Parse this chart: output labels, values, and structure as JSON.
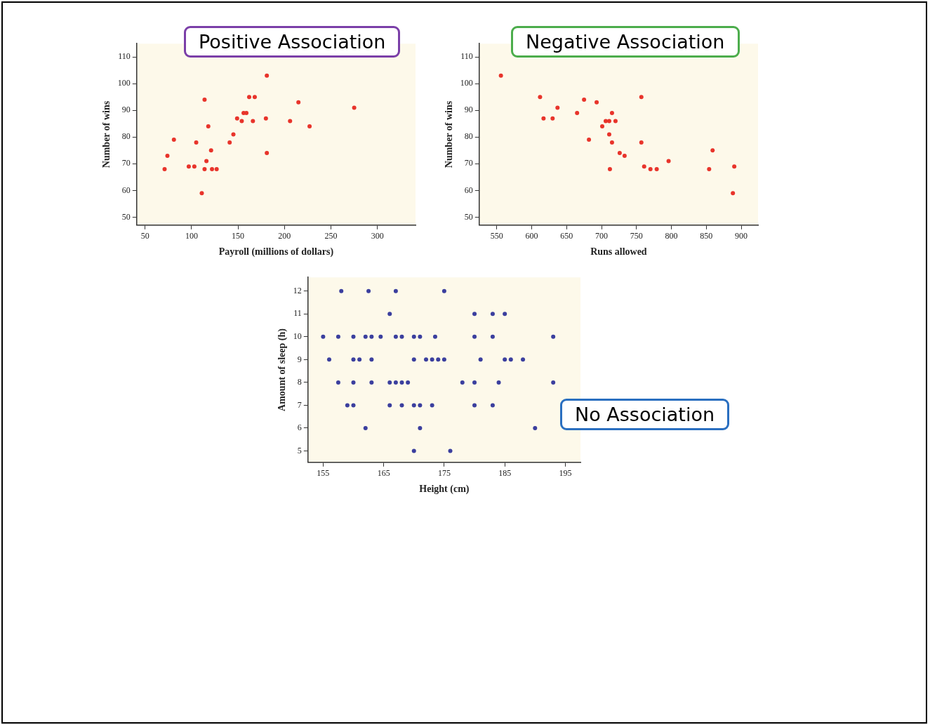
{
  "chart_data": [
    {
      "type": "scatter",
      "title": "Positive Association",
      "xlabel": "Payroll (millions of dollars)",
      "ylabel": "Number of wins",
      "xlim": [
        41,
        341
      ],
      "xticks": [
        50,
        100,
        150,
        200,
        250,
        300
      ],
      "ylim": [
        47,
        115
      ],
      "yticks": [
        50,
        60,
        70,
        80,
        90,
        100,
        110
      ],
      "grid": false,
      "legend": false,
      "marker": "circle",
      "series": [
        {
          "color": "#e8342b",
          "x": [
            71,
            74,
            81,
            97,
            103,
            105,
            114,
            111,
            114,
            116,
            118,
            121,
            122,
            127,
            141,
            145,
            149,
            154,
            156,
            159,
            162,
            166,
            168,
            180,
            181,
            181,
            206,
            215,
            227,
            275
          ],
          "values": [
            68,
            73,
            79,
            69,
            69,
            78,
            94,
            59,
            68,
            71,
            84,
            75,
            68,
            68,
            78,
            81,
            87,
            86,
            89,
            89,
            95,
            86,
            95,
            87,
            74,
            103,
            86,
            93,
            84,
            91
          ]
        }
      ]
    },
    {
      "type": "scatter",
      "title": "Negative Association",
      "xlabel": "Runs allowed",
      "ylabel": "Number of wins",
      "xlim": [
        525,
        924
      ],
      "xticks": [
        550,
        600,
        650,
        700,
        750,
        800,
        850,
        900
      ],
      "ylim": [
        47,
        115
      ],
      "yticks": [
        50,
        60,
        70,
        80,
        90,
        100,
        110
      ],
      "grid": false,
      "legend": false,
      "marker": "circle",
      "series": [
        {
          "color": "#e8342b",
          "x": [
            556,
            612,
            617,
            630,
            637,
            665,
            675,
            682,
            693,
            701,
            706,
            711,
            711,
            712,
            715,
            715,
            720,
            726,
            733,
            757,
            757,
            761,
            770,
            779,
            796,
            854,
            859,
            888,
            890
          ],
          "values": [
            103,
            95,
            87,
            87,
            91,
            89,
            94,
            79,
            93,
            84,
            86,
            86,
            81,
            68,
            89,
            78,
            86,
            74,
            73,
            95,
            78,
            69,
            68,
            68,
            71,
            68,
            75,
            59,
            69
          ]
        }
      ]
    },
    {
      "type": "scatter",
      "title": "No Association",
      "xlabel": "Height (cm)",
      "ylabel": "Amount of sleep (h)",
      "xlim": [
        152.5,
        197.5
      ],
      "xticks": [
        155,
        165,
        175,
        185,
        195
      ],
      "ylim": [
        4.5,
        12.6
      ],
      "yticks": [
        5,
        6,
        7,
        8,
        9,
        10,
        11,
        12
      ],
      "grid": false,
      "legend": false,
      "marker": "circle",
      "series": [
        {
          "color": "#3b3f9e",
          "x": [
            158,
            162.5,
            167,
            175,
            166,
            180,
            183,
            185,
            155,
            157.5,
            160,
            162,
            163,
            164.5,
            167,
            168,
            170,
            171,
            173.5,
            180,
            183,
            193,
            156,
            160,
            161,
            163,
            170,
            172,
            173,
            174,
            175,
            181,
            185,
            186,
            188,
            157.5,
            160,
            163,
            166,
            167,
            168,
            169,
            178,
            180,
            184,
            193,
            159,
            160,
            166,
            168,
            170,
            171,
            173,
            180,
            183,
            162,
            171,
            190,
            170,
            176
          ],
          "values": [
            12,
            12,
            12,
            12,
            11,
            11,
            11,
            11,
            10,
            10,
            10,
            10,
            10,
            10,
            10,
            10,
            10,
            10,
            10,
            10,
            10,
            10,
            9,
            9,
            9,
            9,
            9,
            9,
            9,
            9,
            9,
            9,
            9,
            9,
            9,
            8,
            8,
            8,
            8,
            8,
            8,
            8,
            8,
            8,
            8,
            8,
            7,
            7,
            7,
            7,
            7,
            7,
            7,
            7,
            7,
            6,
            6,
            6,
            5,
            5
          ]
        }
      ]
    }
  ]
}
